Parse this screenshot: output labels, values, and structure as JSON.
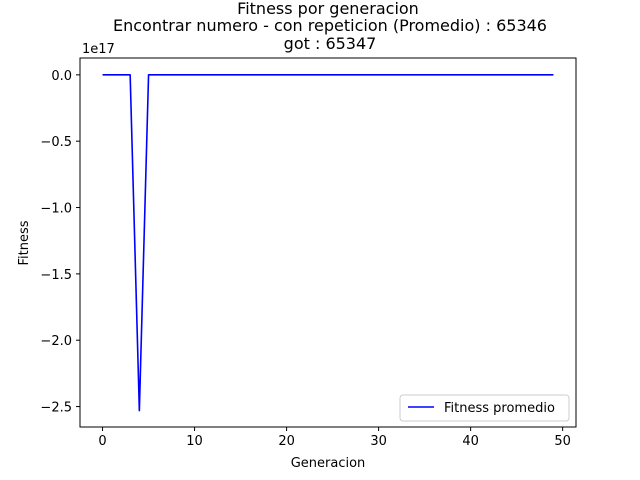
{
  "chart_data": {
    "type": "line",
    "title_lines": [
      "Fitness por generacion",
      "Encontrar numero - con repeticion (Promedio) : 65346",
      "got : 65347"
    ],
    "xlabel": "Generacion",
    "ylabel": "Fitness",
    "offset_text": "1e17",
    "xlim": [
      -2.45,
      51.45
    ],
    "ylim": [
      -2.654,
      0.127
    ],
    "y_scale_factor": 1e+17,
    "xticks": [
      0,
      10,
      20,
      30,
      40,
      50
    ],
    "xtick_labels": [
      "0",
      "10",
      "20",
      "30",
      "40",
      "50"
    ],
    "yticks": [
      0,
      -0.5,
      -1.0,
      -1.5,
      -2.0,
      -2.5
    ],
    "ytick_labels": [
      "0.0",
      "−0.5",
      "−1.0",
      "−1.5",
      "−2.0",
      "−2.5"
    ],
    "legend": {
      "placement": "lower-right",
      "entries": [
        "Fitness promedio"
      ]
    },
    "grid": false,
    "series": [
      {
        "name": "Fitness promedio",
        "color": "#0000ff",
        "x": [
          0,
          1,
          2,
          3,
          4,
          5,
          6,
          7,
          8,
          9,
          10,
          11,
          12,
          13,
          14,
          15,
          16,
          17,
          18,
          19,
          20,
          21,
          22,
          23,
          24,
          25,
          26,
          27,
          28,
          29,
          30,
          31,
          32,
          33,
          34,
          35,
          36,
          37,
          38,
          39,
          40,
          41,
          42,
          43,
          44,
          45,
          46,
          47,
          48,
          49
        ],
        "y": [
          0,
          0,
          0,
          0,
          -2.53,
          0,
          0,
          0,
          0,
          0,
          0,
          0,
          0,
          0,
          0,
          0,
          0,
          0,
          0,
          0,
          0,
          0,
          0,
          0,
          0,
          0,
          0,
          0,
          0,
          0,
          0,
          0,
          0,
          0,
          0,
          0,
          0,
          0,
          0,
          0,
          0,
          0,
          0,
          0,
          0,
          0,
          0,
          0,
          0,
          0
        ]
      }
    ]
  }
}
